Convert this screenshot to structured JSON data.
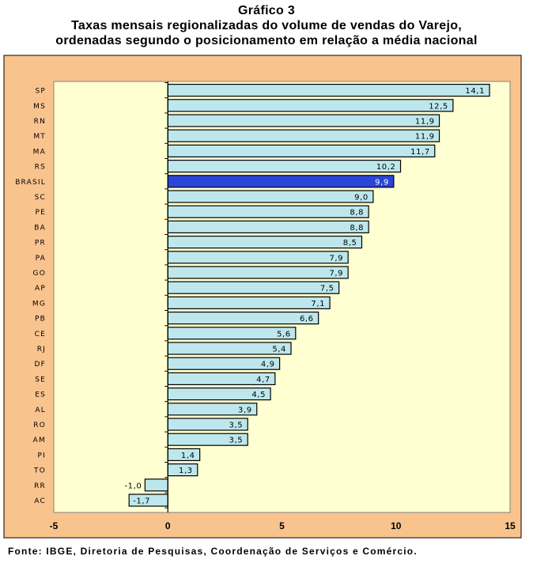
{
  "header": {
    "title_line1": "Gráfico 3",
    "title_line2": "Taxas mensais regionalizadas  do volume de vendas do Varejo,",
    "title_line3": "ordenadas segundo o posicionamento em relação a média nacional"
  },
  "footer": {
    "source": "Fonte: IBGE, Diretoria de Pesquisas, Coordenação de Serviços e Comércio."
  },
  "colors": {
    "outer_background": "#f9c38e",
    "plot_background": "#ffffd1",
    "bar_fill": "#bde7ec",
    "bar_highlight": "#2b45d8",
    "bar_stroke": "#000000"
  },
  "chart_data": {
    "type": "bar",
    "orientation": "horizontal",
    "title": "Taxas mensais regionalizadas  do volume de vendas do Varejo, ordenadas segundo o posicionamento em relação a média nacional",
    "categories": [
      "SP",
      "MS",
      "RN",
      "MT",
      "MA",
      "RS",
      "BRASIL",
      "SC",
      "PE",
      "BA",
      "PR",
      "PA",
      "GO",
      "AP",
      "MG",
      "PB",
      "CE",
      "RJ",
      "DF",
      "SE",
      "ES",
      "AL",
      "RO",
      "AM",
      "PI",
      "TO",
      "RR",
      "AC"
    ],
    "values": [
      14.1,
      12.5,
      11.9,
      11.9,
      11.7,
      10.2,
      9.9,
      9.0,
      8.8,
      8.8,
      8.5,
      7.9,
      7.9,
      7.5,
      7.1,
      6.6,
      5.6,
      5.4,
      4.9,
      4.7,
      4.5,
      3.9,
      3.5,
      3.5,
      1.4,
      1.3,
      -1.0,
      -1.7
    ],
    "labels": [
      "14,1",
      "12,5",
      "11,9",
      "11,9",
      "11,7",
      "10,2",
      "9,9",
      "9,0",
      "8,8",
      "8,8",
      "8,5",
      "7,9",
      "7,9",
      "7,5",
      "7,1",
      "6,6",
      "5,6",
      "5,4",
      "4,9",
      "4,7",
      "4,5",
      "3,9",
      "3,5",
      "3,5",
      "1,4",
      "1,3",
      "-1,0",
      "-1,7"
    ],
    "highlight": "BRASIL",
    "xlim": [
      -5,
      15
    ],
    "xticks": [
      "-5",
      "0",
      "5",
      "10",
      "15"
    ],
    "xlabel": "",
    "ylabel": "",
    "grid": false,
    "legend": "none"
  }
}
